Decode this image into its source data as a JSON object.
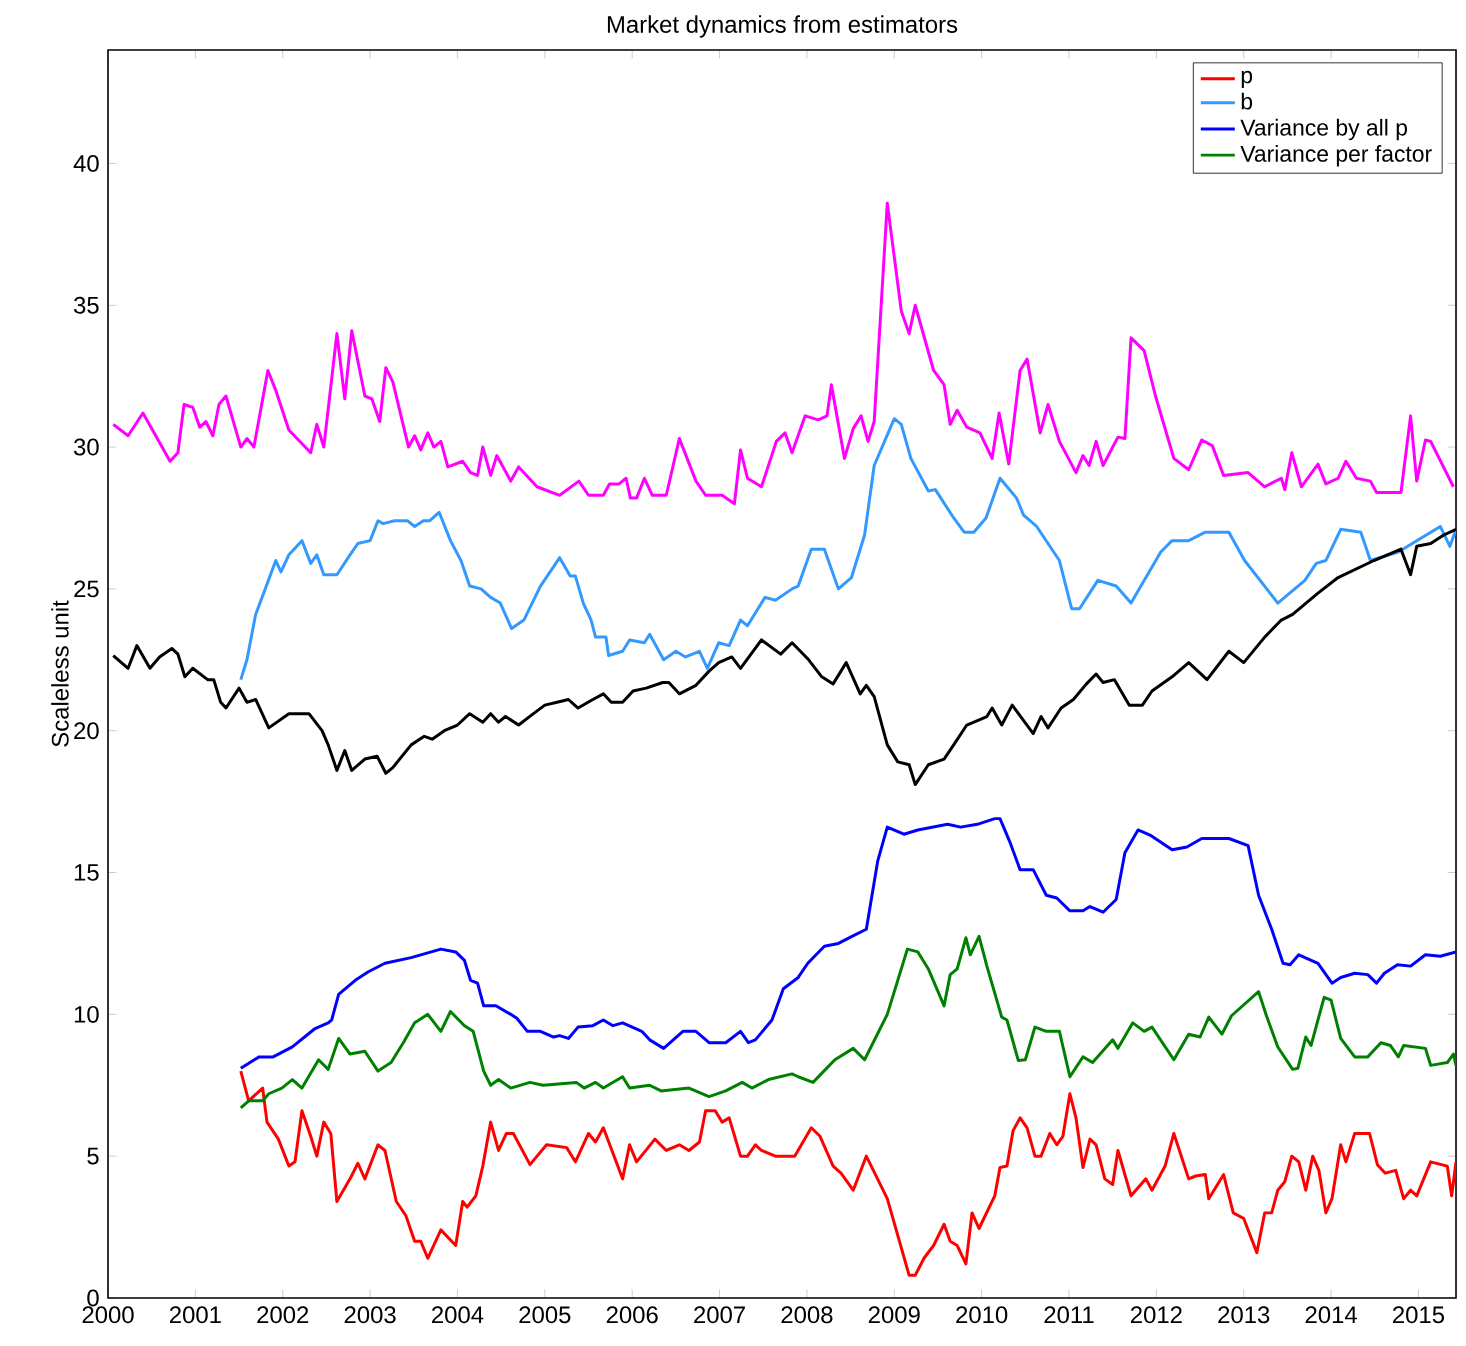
{
  "chart_data": {
    "type": "line",
    "title": "Market dynamics from estimators",
    "ylabel": "Scaleless unit",
    "xlim": [
      2000,
      2015.43
    ],
    "ylim": [
      0,
      44
    ],
    "xticks": [
      2000,
      2001,
      2002,
      2003,
      2004,
      2005,
      2006,
      2007,
      2008,
      2009,
      2010,
      2011,
      2012,
      2013,
      2014,
      2015
    ],
    "yticks": [
      0,
      5,
      10,
      15,
      20,
      25,
      30,
      35,
      40
    ],
    "legend": "top right",
    "series": [
      {
        "name": "p",
        "color": "#ff0000",
        "x": [
          2001.52,
          2001.61,
          2001.77,
          2001.82,
          2001.95,
          2002.07,
          2002.14,
          2002.22,
          2002.32,
          2002.39,
          2002.47,
          2002.55,
          2002.62,
          2002.77,
          2002.86,
          2002.94,
          2003.09,
          2003.17,
          2003.3,
          2003.41,
          2003.51,
          2003.58,
          2003.66,
          2003.81,
          2003.98,
          2004.06,
          2004.11,
          2004.21,
          2004.29,
          2004.38,
          2004.47,
          2004.56,
          2004.64,
          2004.83,
          2005.02,
          2005.25,
          2005.35,
          2005.5,
          2005.58,
          2005.67,
          2005.89,
          2005.97,
          2006.05,
          2006.26,
          2006.39,
          2006.54,
          2006.65,
          2006.77,
          2006.84,
          2006.95,
          2007.03,
          2007.11,
          2007.24,
          2007.32,
          2007.41,
          2007.48,
          2007.64,
          2007.86,
          2008.05,
          2008.15,
          2008.3,
          2008.39,
          2008.53,
          2008.68,
          2008.92,
          2009.17,
          2009.24,
          2009.34,
          2009.45,
          2009.57,
          2009.64,
          2009.72,
          2009.82,
          2009.89,
          2009.97,
          2010.15,
          2010.21,
          2010.29,
          2010.36,
          2010.44,
          2010.52,
          2010.61,
          2010.68,
          2010.78,
          2010.86,
          2010.93,
          2011.01,
          2011.08,
          2011.16,
          2011.24,
          2011.31,
          2011.41,
          2011.5,
          2011.56,
          2011.71,
          2011.88,
          2011.95,
          2012.1,
          2012.2,
          2012.37,
          2012.45,
          2012.56,
          2012.6,
          2012.77,
          2012.88,
          2013.0,
          2013.15,
          2013.24,
          2013.32,
          2013.39,
          2013.47,
          2013.55,
          2013.63,
          2013.71,
          2013.79,
          2013.86,
          2013.94,
          2014.01,
          2014.11,
          2014.17,
          2014.27,
          2014.44,
          2014.53,
          2014.62,
          2014.74,
          2014.83,
          2014.91,
          2014.98,
          2015.14,
          2015.33,
          2015.38,
          2015.43
        ],
        "values": [
          8.0,
          6.95,
          7.4,
          6.2,
          5.6,
          4.65,
          4.8,
          6.6,
          5.7,
          5.0,
          6.2,
          5.8,
          3.4,
          4.2,
          4.75,
          4.2,
          5.4,
          5.2,
          3.4,
          2.9,
          2.0,
          2.0,
          1.4,
          2.4,
          1.85,
          3.4,
          3.2,
          3.6,
          4.65,
          6.2,
          5.2,
          5.8,
          5.8,
          4.7,
          5.4,
          5.3,
          4.8,
          5.8,
          5.5,
          6.0,
          4.2,
          5.4,
          4.8,
          5.6,
          5.2,
          5.4,
          5.2,
          5.5,
          6.6,
          6.6,
          6.2,
          6.35,
          5.0,
          5.0,
          5.4,
          5.2,
          5.0,
          5.0,
          6.0,
          5.7,
          4.65,
          4.4,
          3.8,
          5.0,
          3.5,
          0.8,
          0.8,
          1.4,
          1.85,
          2.6,
          2.0,
          1.85,
          1.2,
          3.0,
          2.45,
          3.6,
          4.6,
          4.65,
          5.9,
          6.35,
          6.0,
          5.0,
          5.0,
          5.8,
          5.4,
          5.7,
          7.2,
          6.35,
          4.6,
          5.6,
          5.4,
          4.2,
          4.0,
          5.2,
          3.6,
          4.2,
          3.8,
          4.65,
          5.8,
          4.2,
          4.3,
          4.35,
          3.5,
          4.35,
          3.0,
          2.8,
          1.6,
          3.0,
          3.0,
          3.8,
          4.1,
          5.0,
          4.8,
          3.8,
          5.0,
          4.5,
          3.0,
          3.5,
          5.4,
          4.8,
          5.8,
          5.8,
          4.7,
          4.4,
          4.5,
          3.5,
          3.8,
          3.6,
          4.8,
          4.65,
          3.6,
          4.8
        ]
      },
      {
        "name": "b",
        "color": "#3399ff",
        "x": [
          2001.52,
          2001.59,
          2001.69,
          2001.8,
          2001.92,
          2001.98,
          2002.07,
          2002.22,
          2002.32,
          2002.39,
          2002.47,
          2002.62,
          2002.77,
          2002.86,
          2003.0,
          2003.09,
          2003.15,
          2003.28,
          2003.43,
          2003.51,
          2003.61,
          2003.68,
          2003.79,
          2003.92,
          2004.04,
          2004.14,
          2004.27,
          2004.38,
          2004.49,
          2004.62,
          2004.76,
          2004.95,
          2005.17,
          2005.29,
          2005.35,
          2005.44,
          2005.53,
          2005.58,
          2005.7,
          2005.73,
          2005.89,
          2005.97,
          2006.14,
          2006.2,
          2006.36,
          2006.5,
          2006.61,
          2006.77,
          2006.86,
          2006.99,
          2007.11,
          2007.24,
          2007.32,
          2007.52,
          2007.64,
          2007.83,
          2007.9,
          2008.05,
          2008.2,
          2008.36,
          2008.51,
          2008.66,
          2008.77,
          2009.0,
          2009.08,
          2009.19,
          2009.39,
          2009.47,
          2009.68,
          2009.8,
          2009.91,
          2010.05,
          2010.21,
          2010.4,
          2010.48,
          2010.63,
          2010.89,
          2011.03,
          2011.12,
          2011.33,
          2011.54,
          2011.71,
          2012.05,
          2012.18,
          2012.37,
          2012.56,
          2012.83,
          2013.01,
          2013.39,
          2013.7,
          2013.83,
          2013.94,
          2014.11,
          2014.34,
          2014.45,
          2014.77,
          2014.98,
          2015.25,
          2015.36,
          2015.43
        ],
        "values": [
          21.8,
          22.5,
          24.1,
          25.0,
          26.0,
          25.6,
          26.2,
          26.7,
          25.9,
          26.2,
          25.5,
          25.5,
          26.2,
          26.6,
          26.7,
          27.4,
          27.3,
          27.4,
          27.4,
          27.2,
          27.4,
          27.4,
          27.7,
          26.7,
          26.0,
          25.1,
          25.0,
          24.7,
          24.5,
          23.6,
          23.9,
          25.1,
          26.1,
          25.45,
          25.45,
          24.5,
          23.9,
          23.3,
          23.3,
          22.65,
          22.8,
          23.2,
          23.1,
          23.4,
          22.5,
          22.8,
          22.6,
          22.8,
          22.2,
          23.1,
          23.0,
          23.9,
          23.7,
          24.7,
          24.6,
          25.0,
          25.1,
          26.4,
          26.4,
          25.0,
          25.4,
          26.9,
          29.35,
          31.0,
          30.8,
          29.6,
          28.45,
          28.5,
          27.5,
          27.0,
          27.0,
          27.5,
          28.9,
          28.2,
          27.6,
          27.2,
          26.0,
          24.3,
          24.3,
          25.3,
          25.1,
          24.5,
          26.3,
          26.7,
          26.7,
          27.0,
          27.0,
          26.0,
          24.5,
          25.3,
          25.9,
          26.0,
          27.1,
          27.0,
          26.0,
          26.3,
          26.7,
          27.2,
          26.5,
          27.1
        ]
      },
      {
        "name": "Variance by all p",
        "color": "#0000ff",
        "x": [
          2001.52,
          2001.73,
          2001.89,
          2002.11,
          2002.37,
          2002.52,
          2002.56,
          2002.64,
          2002.83,
          2002.98,
          2003.17,
          2003.47,
          2003.81,
          2003.98,
          2004.08,
          2004.15,
          2004.23,
          2004.3,
          2004.44,
          2004.61,
          2004.68,
          2004.8,
          2004.95,
          2005.1,
          2005.17,
          2005.27,
          2005.38,
          2005.55,
          2005.67,
          2005.78,
          2005.89,
          2006.11,
          2006.2,
          2006.36,
          2006.58,
          2006.73,
          2006.88,
          2007.07,
          2007.24,
          2007.33,
          2007.41,
          2007.6,
          2007.73,
          2007.9,
          2008.01,
          2008.2,
          2008.36,
          2008.55,
          2008.68,
          2008.81,
          2008.92,
          2009.11,
          2009.27,
          2009.61,
          2009.76,
          2009.95,
          2010.15,
          2010.21,
          2010.32,
          2010.44,
          2010.59,
          2010.74,
          2010.86,
          2011.01,
          2011.16,
          2011.24,
          2011.39,
          2011.54,
          2011.64,
          2011.79,
          2011.94,
          2012.18,
          2012.35,
          2012.52,
          2012.83,
          2013.05,
          2013.17,
          2013.32,
          2013.45,
          2013.53,
          2013.63,
          2013.85,
          2014.01,
          2014.11,
          2014.27,
          2014.42,
          2014.52,
          2014.61,
          2014.76,
          2014.91,
          2015.08,
          2015.25,
          2015.43
        ],
        "values": [
          8.1,
          8.5,
          8.5,
          8.85,
          9.5,
          9.7,
          9.8,
          10.7,
          11.2,
          11.5,
          11.8,
          12.0,
          12.3,
          12.2,
          11.9,
          11.2,
          11.1,
          10.3,
          10.3,
          10.0,
          9.86,
          9.4,
          9.4,
          9.2,
          9.25,
          9.15,
          9.55,
          9.6,
          9.8,
          9.6,
          9.7,
          9.4,
          9.1,
          8.8,
          9.4,
          9.4,
          9.0,
          9.0,
          9.4,
          9.0,
          9.1,
          9.8,
          10.9,
          11.3,
          11.8,
          12.4,
          12.5,
          12.8,
          13.0,
          15.4,
          16.6,
          16.35,
          16.5,
          16.7,
          16.6,
          16.7,
          16.9,
          16.9,
          16.1,
          15.1,
          15.1,
          14.2,
          14.1,
          13.65,
          13.65,
          13.8,
          13.6,
          14.05,
          15.7,
          16.5,
          16.3,
          15.8,
          15.9,
          16.2,
          16.2,
          15.95,
          14.2,
          13.0,
          11.8,
          11.75,
          12.1,
          11.8,
          11.1,
          11.3,
          11.45,
          11.4,
          11.1,
          11.45,
          11.75,
          11.7,
          12.1,
          12.05,
          12.2
        ]
      },
      {
        "name": "Variance per factor",
        "color": "#008000",
        "x": [
          2001.52,
          2001.61,
          2001.77,
          2001.84,
          2001.99,
          2002.11,
          2002.22,
          2002.41,
          2002.52,
          2002.64,
          2002.77,
          2002.94,
          2003.09,
          2003.24,
          2003.38,
          2003.51,
          2003.66,
          2003.81,
          2003.92,
          2004.08,
          2004.18,
          2004.3,
          2004.38,
          2004.47,
          2004.61,
          2004.83,
          2004.98,
          2005.36,
          2005.45,
          2005.58,
          2005.67,
          2005.89,
          2005.97,
          2006.2,
          2006.33,
          2006.65,
          2006.88,
          2007.07,
          2007.26,
          2007.37,
          2007.56,
          2007.83,
          2007.9,
          2008.07,
          2008.32,
          2008.53,
          2008.66,
          2008.92,
          2009.15,
          2009.27,
          2009.39,
          2009.57,
          2009.64,
          2009.72,
          2009.82,
          2009.87,
          2009.97,
          2010.06,
          2010.23,
          2010.29,
          2010.42,
          2010.5,
          2010.61,
          2010.74,
          2010.89,
          2011.01,
          2011.16,
          2011.27,
          2011.5,
          2011.56,
          2011.73,
          2011.86,
          2011.95,
          2012.2,
          2012.37,
          2012.5,
          2012.6,
          2012.75,
          2012.86,
          2013.17,
          2013.26,
          2013.39,
          2013.56,
          2013.62,
          2013.71,
          2013.77,
          2013.92,
          2014.0,
          2014.11,
          2014.27,
          2014.42,
          2014.57,
          2014.68,
          2014.77,
          2014.83,
          2015.08,
          2015.14,
          2015.33,
          2015.4,
          2015.43
        ],
        "values": [
          6.7,
          6.95,
          6.95,
          7.2,
          7.4,
          7.7,
          7.4,
          8.4,
          8.06,
          9.15,
          8.6,
          8.7,
          8.0,
          8.3,
          9.0,
          9.7,
          10.0,
          9.4,
          10.1,
          9.6,
          9.4,
          8.0,
          7.5,
          7.7,
          7.4,
          7.6,
          7.5,
          7.6,
          7.4,
          7.6,
          7.4,
          7.8,
          7.4,
          7.5,
          7.3,
          7.4,
          7.1,
          7.3,
          7.6,
          7.4,
          7.7,
          7.9,
          7.8,
          7.6,
          8.4,
          8.8,
          8.4,
          10.0,
          12.3,
          12.2,
          11.6,
          10.3,
          11.4,
          11.6,
          12.7,
          12.1,
          12.75,
          11.7,
          9.9,
          9.8,
          8.37,
          8.4,
          9.55,
          9.4,
          9.4,
          7.8,
          8.5,
          8.3,
          9.1,
          8.8,
          9.7,
          9.4,
          9.55,
          8.4,
          9.3,
          9.2,
          9.9,
          9.3,
          9.95,
          10.8,
          9.95,
          8.85,
          8.06,
          8.1,
          9.2,
          8.9,
          10.6,
          10.5,
          9.15,
          8.5,
          8.5,
          9.0,
          8.9,
          8.5,
          8.9,
          8.8,
          8.2,
          8.3,
          8.6,
          8.2
        ]
      },
      {
        "color": "#000000",
        "x": [
          2000.06,
          2000.23,
          2000.33,
          2000.48,
          2000.59,
          2000.73,
          2000.8,
          2000.88,
          2000.97,
          2001.14,
          2001.21,
          2001.29,
          2001.35,
          2001.5,
          2001.59,
          2001.69,
          2001.84,
          2002.07,
          2002.3,
          2002.45,
          2002.52,
          2002.62,
          2002.71,
          2002.79,
          2002.94,
          2003.08,
          2003.18,
          2003.26,
          2003.47,
          2003.62,
          2003.71,
          2003.85,
          2004.0,
          2004.14,
          2004.29,
          2004.38,
          2004.47,
          2004.55,
          2004.7,
          2004.87,
          2005.0,
          2005.14,
          2005.27,
          2005.38,
          2005.55,
          2005.67,
          2005.76,
          2005.89,
          2006.01,
          2006.16,
          2006.35,
          2006.42,
          2006.54,
          2006.73,
          2006.88,
          2006.99,
          2007.14,
          2007.24,
          2007.48,
          2007.7,
          2007.83,
          2008.02,
          2008.17,
          2008.3,
          2008.45,
          2008.61,
          2008.68,
          2008.77,
          2008.92,
          2009.04,
          2009.17,
          2009.24,
          2009.39,
          2009.57,
          2009.68,
          2009.83,
          2010.06,
          2010.12,
          2010.23,
          2010.35,
          2010.59,
          2010.68,
          2010.76,
          2010.91,
          2011.05,
          2011.2,
          2011.31,
          2011.39,
          2011.52,
          2011.69,
          2011.84,
          2011.95,
          2012.18,
          2012.37,
          2012.58,
          2012.83,
          2013.0,
          2013.24,
          2013.43,
          2013.56,
          2013.85,
          2014.08,
          2014.49,
          2014.8,
          2014.91,
          2014.98,
          2015.14,
          2015.29,
          2015.43
        ],
        "values": [
          22.65,
          22.2,
          23.0,
          22.2,
          22.6,
          22.9,
          22.7,
          21.9,
          22.2,
          21.8,
          21.8,
          21.0,
          20.8,
          21.5,
          21.0,
          21.1,
          20.1,
          20.6,
          20.6,
          20.0,
          19.5,
          18.6,
          19.3,
          18.6,
          19.0,
          19.1,
          18.5,
          18.7,
          19.5,
          19.8,
          19.7,
          20.0,
          20.2,
          20.6,
          20.3,
          20.6,
          20.3,
          20.5,
          20.2,
          20.6,
          20.9,
          21.0,
          21.1,
          20.8,
          21.1,
          21.3,
          21.0,
          21.0,
          21.4,
          21.5,
          21.7,
          21.7,
          21.3,
          21.6,
          22.1,
          22.4,
          22.6,
          22.2,
          23.2,
          22.7,
          23.1,
          22.5,
          21.9,
          21.65,
          22.4,
          21.3,
          21.6,
          21.2,
          19.5,
          18.9,
          18.8,
          18.1,
          18.8,
          19.0,
          19.5,
          20.2,
          20.5,
          20.8,
          20.2,
          20.9,
          19.9,
          20.5,
          20.1,
          20.8,
          21.1,
          21.65,
          22.0,
          21.7,
          21.8,
          20.9,
          20.9,
          21.4,
          21.9,
          22.4,
          21.8,
          22.8,
          22.4,
          23.3,
          23.9,
          24.1,
          24.85,
          25.4,
          26.0,
          26.4,
          25.5,
          26.5,
          26.6,
          26.9,
          27.1
        ]
      },
      {
        "color": "#ff00ff",
        "x": [
          2000.06,
          2000.23,
          2000.4,
          2000.71,
          2000.8,
          2000.87,
          2000.97,
          2001.05,
          2001.12,
          2001.2,
          2001.27,
          2001.35,
          2001.52,
          2001.59,
          2001.67,
          2001.83,
          2001.92,
          2002.07,
          2002.32,
          2002.39,
          2002.47,
          2002.62,
          2002.71,
          2002.79,
          2002.94,
          2003.02,
          2003.11,
          2003.18,
          2003.26,
          2003.44,
          2003.51,
          2003.58,
          2003.66,
          2003.73,
          2003.81,
          2003.89,
          2004.06,
          2004.15,
          2004.23,
          2004.29,
          2004.38,
          2004.45,
          2004.61,
          2004.7,
          2004.91,
          2005.17,
          2005.39,
          2005.5,
          2005.67,
          2005.74,
          2005.85,
          2005.93,
          2005.98,
          2006.05,
          2006.14,
          2006.23,
          2006.39,
          2006.54,
          2006.73,
          2006.84,
          2007.03,
          2007.17,
          2007.24,
          2007.32,
          2007.48,
          2007.65,
          2007.75,
          2007.83,
          2007.98,
          2008.13,
          2008.23,
          2008.28,
          2008.43,
          2008.53,
          2008.62,
          2008.7,
          2008.77,
          2008.92,
          2009.08,
          2009.17,
          2009.24,
          2009.45,
          2009.57,
          2009.64,
          2009.72,
          2009.83,
          2009.98,
          2010.12,
          2010.2,
          2010.31,
          2010.44,
          2010.52,
          2010.67,
          2010.76,
          2010.89,
          2011.08,
          2011.16,
          2011.23,
          2011.31,
          2011.39,
          2011.56,
          2011.64,
          2011.71,
          2011.86,
          2011.99,
          2012.2,
          2012.37,
          2012.52,
          2012.64,
          2012.77,
          2013.05,
          2013.24,
          2013.43,
          2013.47,
          2013.55,
          2013.66,
          2013.85,
          2013.94,
          2014.08,
          2014.17,
          2014.29,
          2014.45,
          2014.52,
          2014.8,
          2014.91,
          2014.98,
          2015.08,
          2015.14,
          2015.4
        ],
        "values": [
          30.8,
          30.4,
          31.2,
          29.5,
          29.8,
          31.5,
          31.4,
          30.7,
          30.9,
          30.4,
          31.5,
          31.8,
          30.0,
          30.3,
          30.0,
          32.7,
          32.0,
          30.6,
          29.8,
          30.8,
          30.0,
          34.0,
          31.7,
          34.1,
          31.8,
          31.7,
          30.9,
          32.8,
          32.3,
          30.0,
          30.4,
          29.9,
          30.5,
          30.0,
          30.2,
          29.3,
          29.5,
          29.1,
          29.0,
          30.0,
          29.0,
          29.7,
          28.8,
          29.3,
          28.6,
          28.3,
          28.8,
          28.3,
          28.3,
          28.7,
          28.7,
          28.9,
          28.2,
          28.2,
          28.9,
          28.3,
          28.3,
          30.3,
          28.8,
          28.3,
          28.3,
          28.0,
          29.9,
          28.9,
          28.6,
          30.2,
          30.5,
          29.8,
          31.1,
          30.96,
          31.1,
          32.2,
          29.6,
          30.65,
          31.1,
          30.2,
          30.9,
          38.6,
          34.8,
          34.0,
          35.0,
          32.7,
          32.2,
          30.8,
          31.3,
          30.7,
          30.5,
          29.6,
          31.2,
          29.4,
          32.7,
          33.1,
          30.5,
          31.5,
          30.2,
          29.1,
          29.7,
          29.35,
          30.2,
          29.35,
          30.35,
          30.3,
          33.85,
          33.4,
          31.8,
          29.6,
          29.2,
          30.25,
          30.05,
          29.0,
          29.1,
          28.6,
          28.9,
          28.5,
          29.8,
          28.6,
          29.4,
          28.7,
          28.9,
          29.5,
          28.9,
          28.8,
          28.4,
          28.4,
          31.1,
          28.8,
          30.25,
          30.2,
          28.6
        ]
      }
    ]
  }
}
